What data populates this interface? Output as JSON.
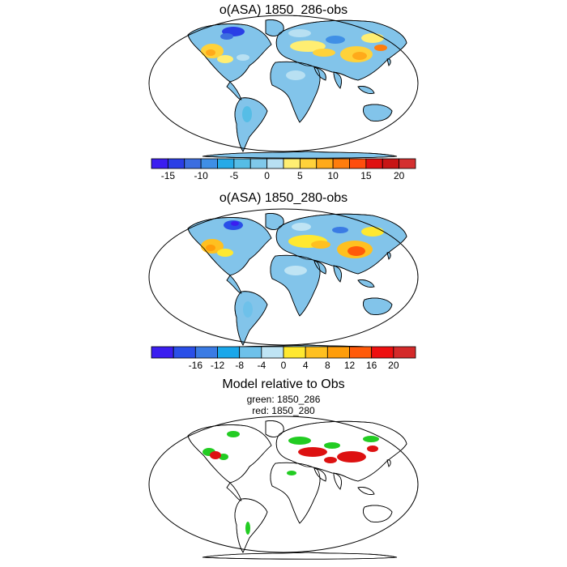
{
  "panels": [
    {
      "title": "o(ASA) 1850_286-obs"
    },
    {
      "title": "o(ASA) 1850_280-obs"
    },
    {
      "title": "Model relative to Obs",
      "lines": [
        "green: 1850_286",
        "red: 1850_280"
      ]
    }
  ],
  "colorbar1": {
    "colors": [
      "#3b1ef0",
      "#2a3ee6",
      "#3c6ee0",
      "#3f8fe6",
      "#26aae8",
      "#56bde6",
      "#7fc8ea",
      "#b8e0f2",
      "#ffee72",
      "#ffd23a",
      "#ffaa1a",
      "#ff7d0d",
      "#ff4d0d",
      "#e01010",
      "#c81515",
      "#d43030"
    ],
    "labels": [
      "-15",
      "-10",
      "-5",
      "0",
      "5",
      "10",
      "15",
      "20"
    ]
  },
  "colorbar2": {
    "colors": [
      "#3b1ef0",
      "#2a4fe8",
      "#3a7be4",
      "#1aa7ea",
      "#6ec1ea",
      "#bfe4f4",
      "#ffe830",
      "#ffc020",
      "#ff9d0a",
      "#ff5a0a",
      "#ee1010",
      "#d42a2a"
    ],
    "labels": [
      "-16",
      "-12",
      "-8",
      "-4",
      "0",
      "4",
      "8",
      "12",
      "16",
      "20"
    ]
  },
  "colors": {
    "ocean_land": "#82c4ea",
    "green": "#22cc22",
    "red": "#dd1111"
  }
}
